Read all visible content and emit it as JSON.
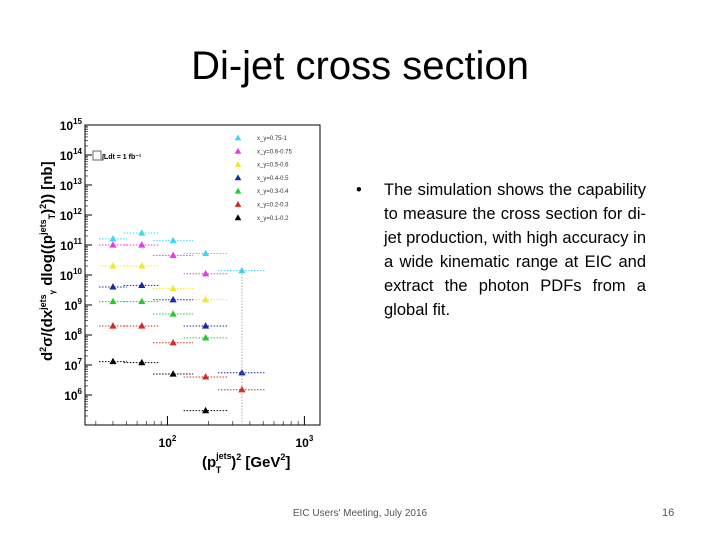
{
  "slide": {
    "title": "Di-jet cross section",
    "bullet_marker": "•",
    "bullet_text": "The simulation shows the capability to measure the cross section for di-jet production, with high accuracy in a wide kinematic range at EIC and extract the photon PDFs from a global fit.",
    "footer": "EIC Users' Meeting, July 2016",
    "page_number": "16"
  },
  "chart_data": {
    "type": "scatter",
    "x_scale": "log",
    "y_scale": "log",
    "xlim": [
      25,
      1300
    ],
    "ylim": [
      100000,
      1000000000000000
    ],
    "x_ticks": [
      {
        "value": 100,
        "base": "10",
        "exp": "2"
      },
      {
        "value": 1000,
        "base": "10",
        "exp": "3"
      }
    ],
    "y_ticks": [
      {
        "value": 1000000,
        "base": "10",
        "exp": "6"
      },
      {
        "value": 10000000,
        "base": "10",
        "exp": "7"
      },
      {
        "value": 100000000,
        "base": "10",
        "exp": "8"
      },
      {
        "value": 1000000000,
        "base": "10",
        "exp": "9"
      },
      {
        "value": 10000000000,
        "base": "10",
        "exp": "10"
      },
      {
        "value": 100000000000,
        "base": "10",
        "exp": "11"
      },
      {
        "value": 1000000000000,
        "base": "10",
        "exp": "12"
      },
      {
        "value": 10000000000000,
        "base": "10",
        "exp": "13"
      },
      {
        "value": 100000000000000,
        "base": "10",
        "exp": "14"
      },
      {
        "value": 1000000000000000,
        "base": "10",
        "exp": "15"
      }
    ],
    "ylabel": "d²σ/(dx_γ^jets dlog((p_T^jets)²)) [nb]",
    "xlabel": "(p_T^jets)² [GeV²]",
    "annotation": "∫Ldt = 1 fb⁻¹",
    "legend_position": "top-right",
    "x": [
      40,
      65,
      110,
      190,
      350
    ],
    "series": [
      {
        "name": "x_γ=0.75-1",
        "color": "#3fd8f0",
        "y": [
          160000000000,
          250000000000,
          140000000000,
          52000000000,
          14000000000
        ]
      },
      {
        "name": "x_γ=0.6-0.75",
        "color": "#e23de8",
        "y": [
          100000000000,
          100000000000,
          45000000000,
          11000000000,
          null
        ]
      },
      {
        "name": "x_γ=0.5-0.6",
        "color": "#f0e830",
        "y": [
          20000000000,
          20000000000,
          3500000000,
          1500000000,
          null
        ]
      },
      {
        "name": "x_γ=0.4-0.5",
        "color": "#1a2a9e",
        "y": [
          4000000000,
          4500000000,
          1500000000,
          200000000,
          5500000
        ]
      },
      {
        "name": "x_γ=0.3-0.4",
        "color": "#22cc30",
        "y": [
          1300000000,
          1300000000,
          500000000,
          80000000,
          null
        ]
      },
      {
        "name": "x_γ=0.2-0.3",
        "color": "#d42a22",
        "y": [
          200000000,
          200000000,
          55000000,
          4000000,
          1500000
        ]
      },
      {
        "name": "x_γ=0.1-0.2",
        "color": "#000000",
        "y": [
          13000000,
          12000000,
          5000000,
          300000,
          null
        ]
      }
    ]
  }
}
